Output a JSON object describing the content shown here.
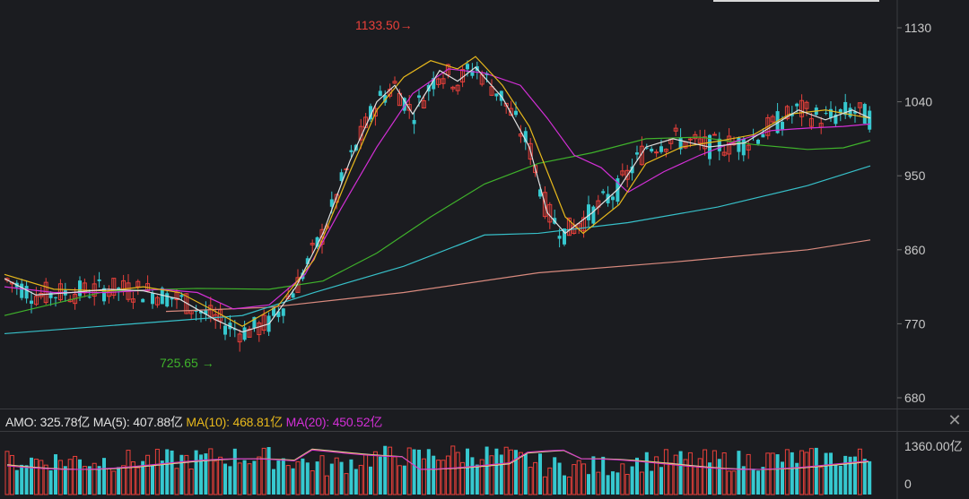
{
  "chart_data": {
    "type": "candlestick",
    "price_axis": {
      "ticks": [
        1130,
        1040,
        950,
        860,
        770,
        680
      ],
      "ylim": [
        668,
        1145
      ]
    },
    "annotations": {
      "high": "1133.50",
      "high_arrow": "→",
      "low": "725.65",
      "low_arrow": "→"
    },
    "colors": {
      "up": "#e8403a",
      "down": "#36c8cf",
      "ma5": "#e0e0e0",
      "ma10": "#e7b81c",
      "ma20": "#d32fd6",
      "ma60": "#3fb22b",
      "ma120": "#37c0c9",
      "ma250": "#d98a7e",
      "axis_text": "#c8c8c8"
    },
    "ma_lines": {
      "ma250": [
        [
          185,
          785
        ],
        [
          300,
          790
        ],
        [
          450,
          808
        ],
        [
          600,
          832
        ],
        [
          750,
          845
        ],
        [
          900,
          860
        ],
        [
          970,
          872
        ]
      ],
      "ma120": [
        [
          5,
          758
        ],
        [
          150,
          770
        ],
        [
          270,
          780
        ],
        [
          350,
          808
        ],
        [
          450,
          840
        ],
        [
          540,
          878
        ],
        [
          600,
          880
        ],
        [
          700,
          893
        ],
        [
          800,
          912
        ],
        [
          900,
          938
        ],
        [
          970,
          962
        ]
      ],
      "ma60": [
        [
          5,
          780
        ],
        [
          120,
          810
        ],
        [
          220,
          813
        ],
        [
          300,
          812
        ],
        [
          360,
          822
        ],
        [
          420,
          856
        ],
        [
          480,
          900
        ],
        [
          540,
          940
        ],
        [
          600,
          965
        ],
        [
          660,
          978
        ],
        [
          720,
          995
        ],
        [
          780,
          997
        ],
        [
          840,
          988
        ],
        [
          900,
          982
        ],
        [
          940,
          984
        ],
        [
          970,
          993
        ]
      ],
      "ma20": [
        [
          5,
          815
        ],
        [
          60,
          808
        ],
        [
          120,
          808
        ],
        [
          180,
          812
        ],
        [
          220,
          808
        ],
        [
          260,
          788
        ],
        [
          300,
          793
        ],
        [
          340,
          830
        ],
        [
          380,
          910
        ],
        [
          420,
          985
        ],
        [
          460,
          1050
        ],
        [
          500,
          1080
        ],
        [
          540,
          1075
        ],
        [
          580,
          1060
        ],
        [
          610,
          1020
        ],
        [
          640,
          975
        ],
        [
          670,
          960
        ],
        [
          700,
          930
        ],
        [
          740,
          955
        ],
        [
          780,
          975
        ],
        [
          820,
          992
        ],
        [
          860,
          1005
        ],
        [
          900,
          1008
        ],
        [
          940,
          1010
        ],
        [
          970,
          1013
        ]
      ],
      "ma10": [
        [
          5,
          830
        ],
        [
          60,
          812
        ],
        [
          120,
          810
        ],
        [
          160,
          815
        ],
        [
          200,
          808
        ],
        [
          240,
          785
        ],
        [
          270,
          767
        ],
        [
          310,
          792
        ],
        [
          350,
          848
        ],
        [
          390,
          955
        ],
        [
          420,
          1030
        ],
        [
          450,
          1070
        ],
        [
          480,
          1090
        ],
        [
          510,
          1080
        ],
        [
          530,
          1095
        ],
        [
          560,
          1060
        ],
        [
          590,
          1010
        ],
        [
          610,
          955
        ],
        [
          630,
          900
        ],
        [
          650,
          880
        ],
        [
          690,
          915
        ],
        [
          720,
          965
        ],
        [
          760,
          985
        ],
        [
          800,
          992
        ],
        [
          840,
          1000
        ],
        [
          880,
          1025
        ],
        [
          920,
          1030
        ],
        [
          970,
          1020
        ]
      ],
      "ma5": [
        [
          5,
          825
        ],
        [
          40,
          805
        ],
        [
          80,
          808
        ],
        [
          120,
          812
        ],
        [
          160,
          810
        ],
        [
          200,
          800
        ],
        [
          240,
          775
        ],
        [
          270,
          760
        ],
        [
          300,
          770
        ],
        [
          330,
          815
        ],
        [
          360,
          880
        ],
        [
          390,
          968
        ],
        [
          420,
          1040
        ],
        [
          440,
          1060
        ],
        [
          460,
          1025
        ],
        [
          490,
          1078
        ],
        [
          510,
          1065
        ],
        [
          530,
          1082
        ],
        [
          560,
          1045
        ],
        [
          590,
          985
        ],
        [
          610,
          905
        ],
        [
          630,
          880
        ],
        [
          660,
          905
        ],
        [
          690,
          935
        ],
        [
          720,
          985
        ],
        [
          750,
          995
        ],
        [
          790,
          985
        ],
        [
          830,
          990
        ],
        [
          860,
          1010
        ],
        [
          890,
          1030
        ],
        [
          920,
          1018
        ],
        [
          950,
          1030
        ],
        [
          970,
          1020
        ]
      ]
    },
    "volume_axis": {
      "ticks_label": [
        "1360.00亿",
        "0"
      ]
    },
    "volume_legend": {
      "amo": "AMO: 325.78亿",
      "ma5": "MA(5): 407.88亿",
      "ma10": "MA(10): 468.81亿",
      "ma20": "MA(20): 450.52亿"
    }
  }
}
